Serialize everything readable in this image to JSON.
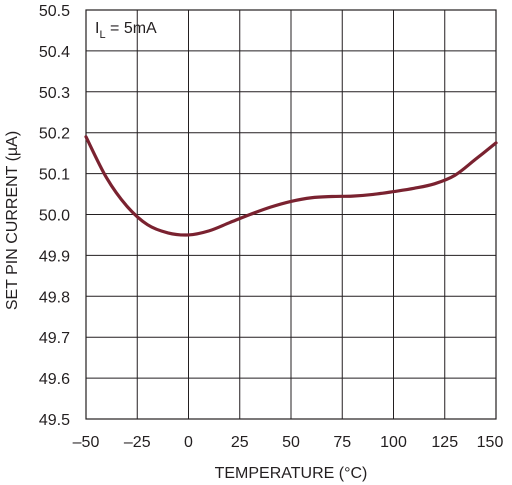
{
  "chart_data": {
    "type": "line",
    "xlabel": "TEMPERATURE (°C)",
    "ylabel": "SET PIN CURRENT (µA)",
    "annotation": {
      "symbol": "I",
      "subscript": "L",
      "text": " = 5mA"
    },
    "xlim": [
      -50,
      150
    ],
    "ylim": [
      49.5,
      50.5
    ],
    "x_ticks": [
      -50,
      -25,
      0,
      25,
      50,
      75,
      100,
      125,
      150
    ],
    "x_tick_labels": [
      "–50",
      "–25",
      "0",
      "25",
      "50",
      "75",
      "100",
      "125",
      "150"
    ],
    "y_ticks": [
      49.5,
      49.6,
      49.7,
      49.8,
      49.9,
      50.0,
      50.1,
      50.2,
      50.3,
      50.4,
      50.5
    ],
    "y_tick_labels": [
      "49.5",
      "49.6",
      "49.7",
      "49.8",
      "49.9",
      "50.0",
      "50.1",
      "50.2",
      "50.3",
      "50.4",
      "50.5"
    ],
    "grid": true,
    "series": [
      {
        "color": "#7a2230",
        "x": [
          -50,
          -40,
          -30,
          -20,
          -10,
          0,
          10,
          20,
          30,
          40,
          50,
          60,
          70,
          80,
          90,
          100,
          110,
          120,
          130,
          140,
          150
        ],
        "y": [
          50.19,
          50.09,
          50.02,
          49.975,
          49.955,
          49.95,
          49.96,
          49.98,
          50.0,
          50.018,
          50.032,
          50.041,
          50.044,
          50.045,
          50.049,
          50.056,
          50.064,
          50.075,
          50.096,
          50.135,
          50.175
        ]
      }
    ]
  }
}
